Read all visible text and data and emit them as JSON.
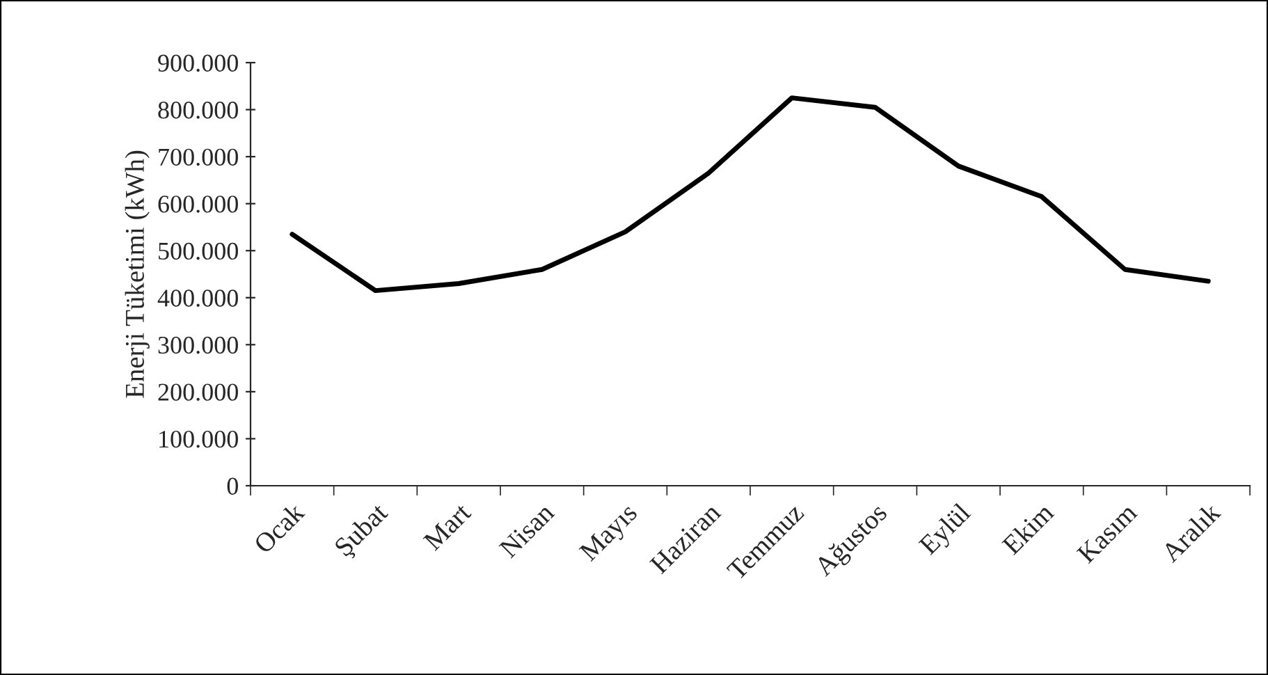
{
  "chart_data": {
    "type": "line",
    "ylabel": "Enerji Tüketimi (kWh)",
    "categories": [
      "Ocak",
      "Şubat",
      "Mart",
      "Nisan",
      "Mayıs",
      "Haziran",
      "Temmuz",
      "Ağustos",
      "Eylül",
      "Ekim",
      "Kasım",
      "Aralık"
    ],
    "series": [
      {
        "color": "#000000",
        "values": [
          535000,
          415000,
          430000,
          460000,
          540000,
          665000,
          825000,
          805000,
          680000,
          615000,
          460000,
          435000
        ]
      }
    ],
    "ylim": [
      0,
      900000
    ],
    "yticks": [
      0,
      {
        "value": 100000,
        "label": "100.000"
      },
      {
        "value": 200000,
        "label": "200.000"
      },
      {
        "value": 300000,
        "label": "300.000"
      },
      {
        "value": 400000,
        "label": "400.000"
      },
      {
        "value": 500000,
        "label": "500.000"
      },
      {
        "value": 600000,
        "label": "600.000"
      },
      {
        "value": 700000,
        "label": "700.000"
      },
      {
        "value": 800000,
        "label": "800.000"
      },
      {
        "value": 900000,
        "label": "900.000"
      }
    ],
    "grid": false,
    "marker": "none",
    "line_style": "solid"
  }
}
